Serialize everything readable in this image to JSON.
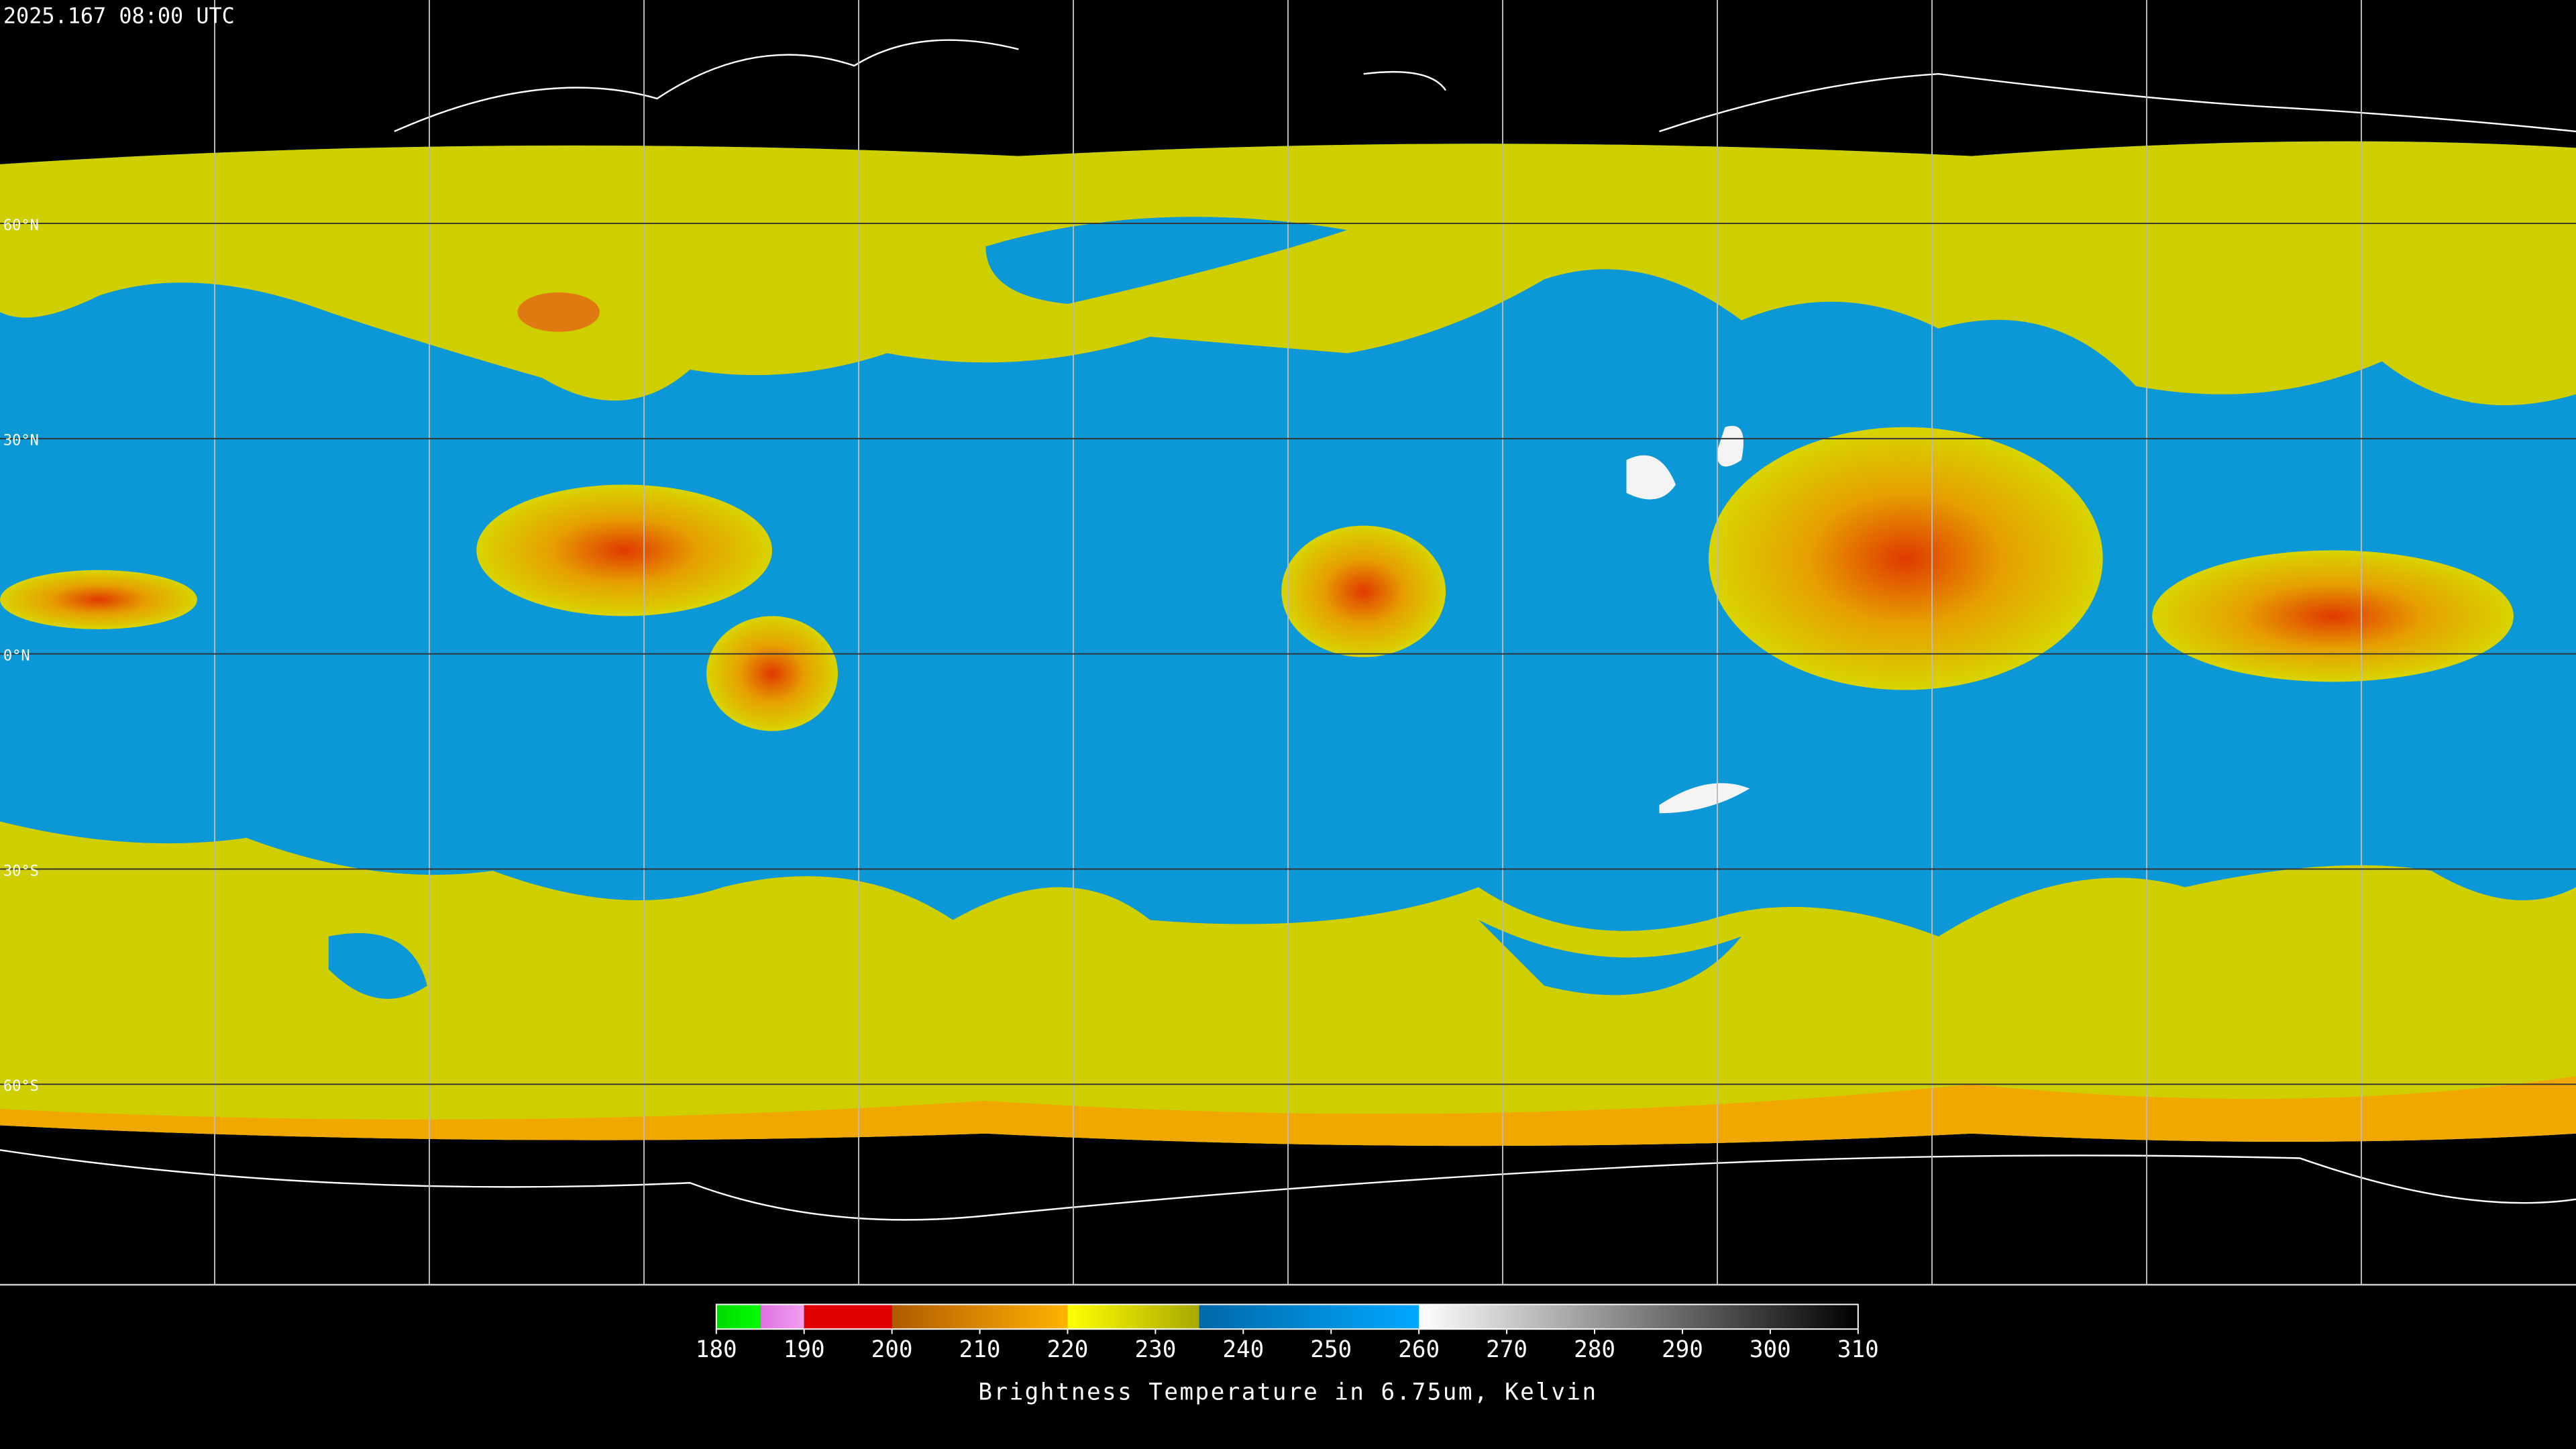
{
  "timestamp": "2025.167 08:00 UTC",
  "latitude_labels": [
    "60°N",
    "30°N",
    "0°N",
    "30°S",
    "60°S"
  ],
  "colorbar": {
    "title": "Brightness Temperature in 6.75um, Kelvin",
    "range": [
      180,
      310
    ],
    "ticks": [
      180,
      190,
      200,
      210,
      220,
      230,
      240,
      250,
      260,
      270,
      280,
      290,
      300,
      310
    ],
    "segments": [
      {
        "from": 180,
        "to": 185,
        "colors": [
          "#00d800",
          "#00ff00"
        ]
      },
      {
        "from": 185,
        "to": 190,
        "colors": [
          "#e070e0",
          "#f0a0f0"
        ]
      },
      {
        "from": 190,
        "to": 200,
        "colors": [
          "#e00000",
          "#e00000"
        ]
      },
      {
        "from": 200,
        "to": 220,
        "colors": [
          "#b05a00",
          "#ffb400"
        ]
      },
      {
        "from": 220,
        "to": 235,
        "colors": [
          "#ffff00",
          "#a8a800"
        ]
      },
      {
        "from": 235,
        "to": 260,
        "colors": [
          "#0068a8",
          "#00a8ff"
        ]
      },
      {
        "from": 260,
        "to": 310,
        "colors": [
          "#ffffff",
          "#000000"
        ]
      }
    ]
  }
}
